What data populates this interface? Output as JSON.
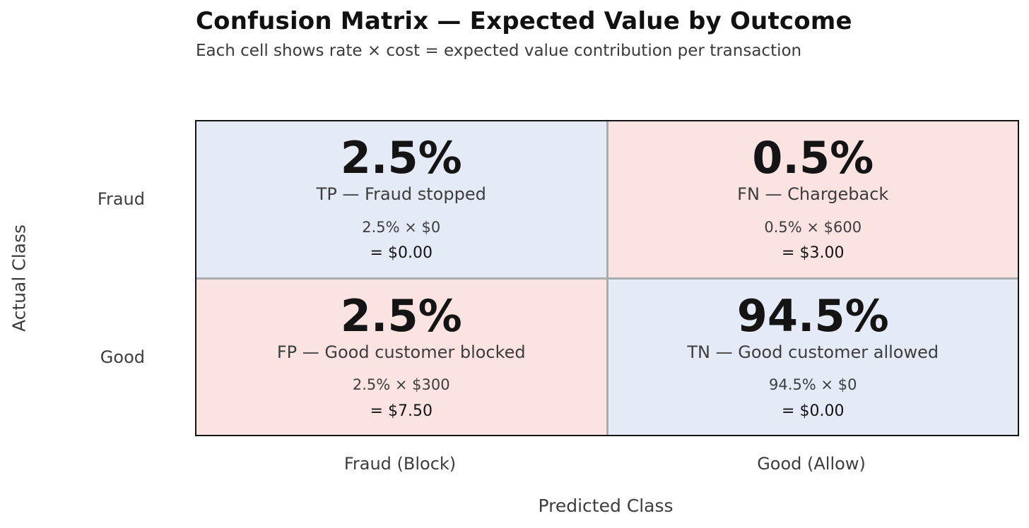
{
  "header": {
    "title": "Confusion Matrix — Expected Value by Outcome",
    "subtitle": "Each cell shows rate × cost = expected value contribution per transaction"
  },
  "axes": {
    "y_label": "Actual Class",
    "x_label": "Predicted Class",
    "row_labels": [
      "Fraud",
      "Good"
    ],
    "col_labels": [
      "Fraud (Block)",
      "Good (Allow)"
    ]
  },
  "colors": {
    "blue": "#e4ebf7",
    "pink": "#fae3e1",
    "grid_line": "#ababab",
    "outer_border": "#141414",
    "text_primary": "#141414",
    "text_secondary": "#3d3d3d"
  },
  "chart_data": {
    "type": "heatmap",
    "title": "Confusion Matrix — Expected Value by Outcome",
    "subtitle": "Each cell shows rate × cost = expected value contribution per transaction",
    "xlabel": "Predicted Class",
    "ylabel": "Actual Class",
    "rows": [
      "Fraud",
      "Good"
    ],
    "cols": [
      "Fraud (Block)",
      "Good (Allow)"
    ],
    "cells": [
      {
        "row": "Fraud",
        "col": "Fraud (Block)",
        "outcome": "TP",
        "rate_pct": 2.5,
        "cost_usd": 0,
        "expected_value_usd": 0.0,
        "rate": "2.5%",
        "label": "TP — Fraud stopped",
        "calc": "2.5% × $0",
        "result": "= $0.00",
        "tone": "blue"
      },
      {
        "row": "Fraud",
        "col": "Good (Allow)",
        "outcome": "FN",
        "rate_pct": 0.5,
        "cost_usd": 600,
        "expected_value_usd": 3.0,
        "rate": "0.5%",
        "label": "FN — Chargeback",
        "calc": "0.5% × $600",
        "result": "= $3.00",
        "tone": "pink"
      },
      {
        "row": "Good",
        "col": "Fraud (Block)",
        "outcome": "FP",
        "rate_pct": 2.5,
        "cost_usd": 300,
        "expected_value_usd": 7.5,
        "rate": "2.5%",
        "label": "FP — Good customer blocked",
        "calc": "2.5% × $300",
        "result": "= $7.50",
        "tone": "pink"
      },
      {
        "row": "Good",
        "col": "Good (Allow)",
        "outcome": "TN",
        "rate_pct": 94.5,
        "cost_usd": 0,
        "expected_value_usd": 0.0,
        "rate": "94.5%",
        "label": "TN — Good customer allowed",
        "calc": "94.5% × $0",
        "result": "= $0.00",
        "tone": "blue"
      }
    ]
  }
}
